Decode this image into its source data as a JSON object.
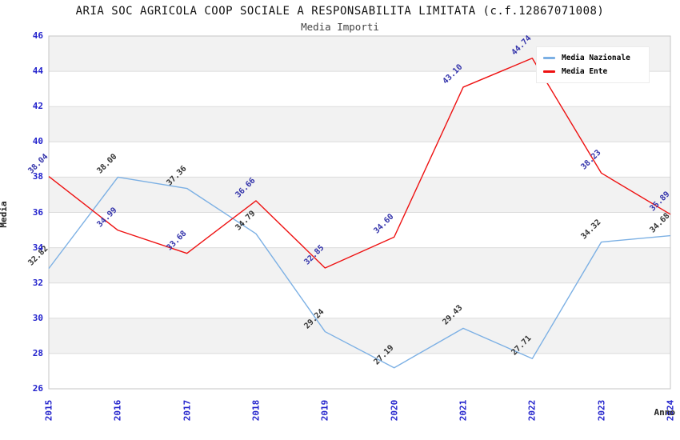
{
  "title": "ARIA SOC AGRICOLA COOP SOCIALE A RESPONSABILITA LIMITATA (c.f.12867071008)",
  "subtitle": "Media Importi",
  "colors": {
    "tick": "#2222cc",
    "grid": "#dcdcdc",
    "band": "#f2f2f2",
    "plot_border": "#c6c6c6",
    "media_nazionale": "#7cb0e4",
    "media_ente": "#ee1111",
    "label_nazionale": "#333333",
    "label_ente": "#3333aa"
  },
  "chart_data": {
    "type": "line",
    "title": "ARIA SOC AGRICOLA COOP SOCIALE A RESPONSABILITA LIMITATA (c.f.12867071008)",
    "subtitle": "Media Importi",
    "xlabel": "Anno",
    "ylabel": "Media",
    "x": [
      2015,
      2016,
      2017,
      2018,
      2019,
      2020,
      2021,
      2022,
      2023,
      2024
    ],
    "series": [
      {
        "name": "Media Nazionale",
        "color": "#7cb0e4",
        "label_color": "#333333",
        "values": [
          32.82,
          38.0,
          37.36,
          34.79,
          29.24,
          27.19,
          29.43,
          27.71,
          34.32,
          34.68
        ]
      },
      {
        "name": "Media Ente",
        "color": "#ee1111",
        "label_color": "#3333aa",
        "values": [
          38.04,
          34.99,
          33.68,
          36.66,
          32.85,
          34.6,
          43.1,
          44.74,
          38.23,
          35.89
        ]
      }
    ],
    "ylim": [
      26,
      46
    ],
    "yticks": [
      26,
      28,
      30,
      32,
      34,
      36,
      38,
      40,
      42,
      44,
      46
    ],
    "grid": true,
    "band_step": 2,
    "legend_position": "top-right",
    "data_labels": true,
    "label_decimals": 2
  }
}
